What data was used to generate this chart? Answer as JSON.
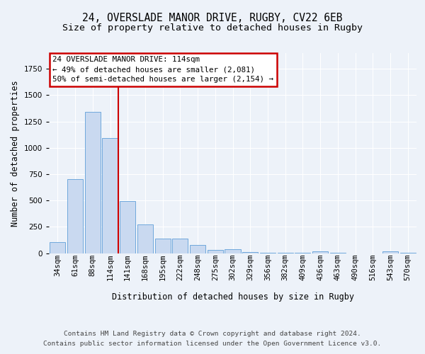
{
  "title1": "24, OVERSLADE MANOR DRIVE, RUGBY, CV22 6EB",
  "title2": "Size of property relative to detached houses in Rugby",
  "xlabel": "Distribution of detached houses by size in Rugby",
  "ylabel": "Number of detached properties",
  "categories": [
    "34sqm",
    "61sqm",
    "88sqm",
    "114sqm",
    "141sqm",
    "168sqm",
    "195sqm",
    "222sqm",
    "248sqm",
    "275sqm",
    "302sqm",
    "329sqm",
    "356sqm",
    "382sqm",
    "409sqm",
    "436sqm",
    "463sqm",
    "490sqm",
    "516sqm",
    "543sqm",
    "570sqm"
  ],
  "values": [
    105,
    700,
    1340,
    1095,
    495,
    270,
    140,
    140,
    75,
    30,
    35,
    10,
    5,
    5,
    5,
    15,
    5,
    0,
    0,
    20,
    5
  ],
  "bar_color": "#c9d9f0",
  "bar_edge_color": "#6fa8dc",
  "red_line_index": 3,
  "ylim": [
    0,
    1900
  ],
  "annotation_text": "24 OVERSLADE MANOR DRIVE: 114sqm\n← 49% of detached houses are smaller (2,081)\n50% of semi-detached houses are larger (2,154) →",
  "footer": "Contains HM Land Registry data © Crown copyright and database right 2024.\nContains public sector information licensed under the Open Government Licence v3.0.",
  "bg_color": "#edf2f9",
  "plot_bg_color": "#edf2f9",
  "grid_color": "#ffffff",
  "annotation_box_edge_color": "#cc0000",
  "title1_fontsize": 10.5,
  "title2_fontsize": 9.5,
  "tick_fontsize": 7.5,
  "ylabel_fontsize": 8.5,
  "xlabel_fontsize": 8.5,
  "annotation_fontsize": 7.8,
  "footer_fontsize": 6.8
}
